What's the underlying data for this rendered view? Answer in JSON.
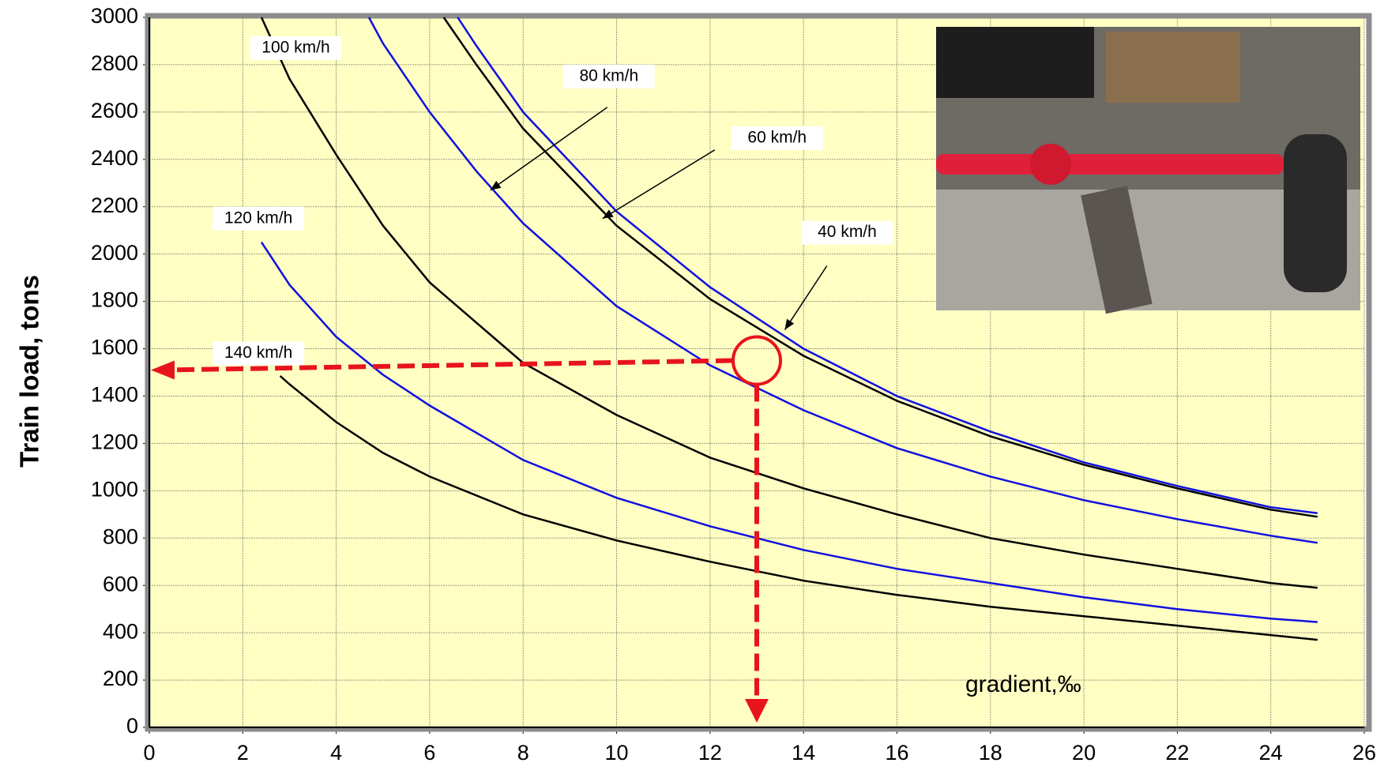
{
  "chart_data": {
    "type": "line",
    "y_label": "Train load, tons",
    "annotation": "gradient,‰",
    "xlim": [
      0,
      26
    ],
    "xticks": [
      0,
      2,
      4,
      6,
      8,
      10,
      12,
      14,
      16,
      18,
      20,
      22,
      24,
      26
    ],
    "ylim": [
      0,
      3000
    ],
    "yticks": [
      0,
      200,
      400,
      600,
      800,
      1000,
      1200,
      1400,
      1600,
      1800,
      2000,
      2200,
      2400,
      2600,
      2800,
      3000
    ],
    "grid": true,
    "highlight": {
      "x": 13,
      "y": 1550,
      "color": "#e8141b"
    },
    "series": [
      {
        "name": "40 km/h",
        "color": "#000000",
        "x": [
          6.3,
          7,
          8,
          10,
          12,
          14,
          16,
          18,
          20,
          22,
          24,
          25
        ],
        "values": [
          3000,
          2800,
          2530,
          2120,
          1810,
          1570,
          1380,
          1230,
          1110,
          1010,
          920,
          890
        ]
      },
      {
        "name": "60 km/h",
        "color": "#1010e0",
        "x": [
          6.6,
          7,
          8,
          10,
          12,
          14,
          16,
          18,
          20,
          22,
          24,
          25
        ],
        "values": [
          3000,
          2880,
          2600,
          2180,
          1860,
          1600,
          1400,
          1250,
          1120,
          1020,
          930,
          905
        ]
      },
      {
        "name": "80 km/h",
        "color": "#1010e0",
        "x": [
          4.7,
          5,
          6,
          7,
          8,
          10,
          12,
          14,
          16,
          18,
          20,
          22,
          24,
          25
        ],
        "values": [
          3000,
          2890,
          2600,
          2350,
          2130,
          1780,
          1530,
          1340,
          1180,
          1060,
          960,
          880,
          810,
          780
        ]
      },
      {
        "name": "100 km/h",
        "color": "#000000",
        "x": [
          2.4,
          3,
          4,
          5,
          6,
          8,
          10,
          12,
          14,
          16,
          18,
          20,
          22,
          24,
          25
        ],
        "values": [
          3000,
          2740,
          2420,
          2120,
          1880,
          1540,
          1320,
          1140,
          1010,
          900,
          800,
          730,
          670,
          610,
          590
        ]
      },
      {
        "name": "120 km/h",
        "color": "#1010e0",
        "x": [
          2.4,
          3,
          4,
          5,
          6,
          8,
          10,
          12,
          14,
          16,
          18,
          20,
          22,
          24,
          25
        ],
        "values": [
          2050,
          1870,
          1650,
          1490,
          1360,
          1130,
          970,
          850,
          750,
          670,
          610,
          550,
          500,
          460,
          445
        ]
      },
      {
        "name": "140 km/h",
        "color": "#000000",
        "x": [
          2.8,
          3,
          4,
          5,
          6,
          8,
          10,
          12,
          14,
          16,
          18,
          20,
          22,
          24,
          25
        ],
        "values": [
          1485,
          1450,
          1290,
          1160,
          1060,
          900,
          790,
          700,
          620,
          560,
          510,
          470,
          430,
          390,
          370
        ]
      }
    ]
  }
}
